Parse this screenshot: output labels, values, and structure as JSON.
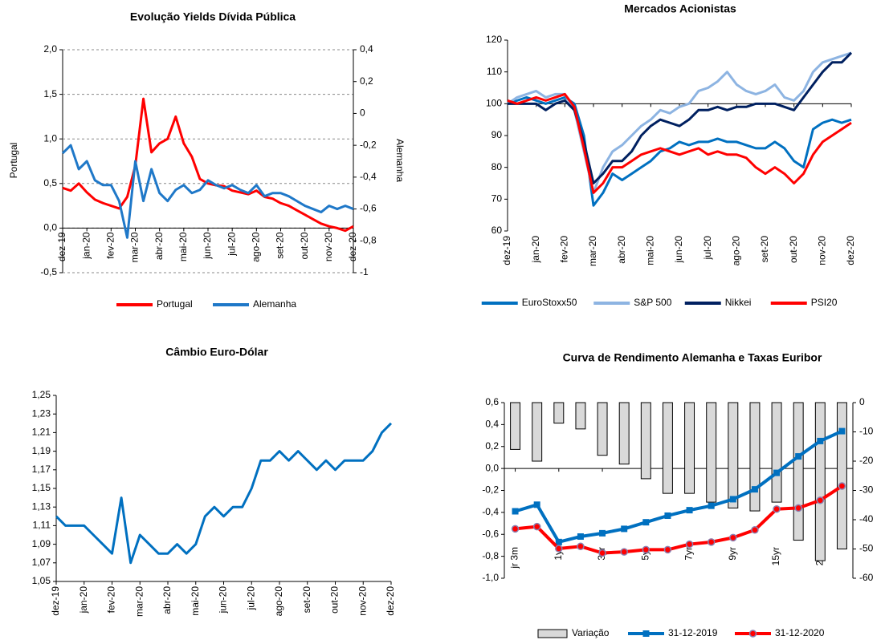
{
  "chart_data": [
    {
      "type": "line",
      "title": "Evolução Yields Dívida Pública",
      "ylabel": "Portugal",
      "y2label": "Alemanha",
      "categories": [
        "dez-19",
        null,
        null,
        "jan-20",
        null,
        null,
        "fev-20",
        null,
        null,
        "mar-20",
        null,
        null,
        "abr-20",
        null,
        null,
        "mai-20",
        null,
        null,
        "jun-20",
        null,
        null,
        "jul-20",
        null,
        null,
        "ago-20",
        null,
        null,
        "set-20",
        null,
        null,
        "out-20",
        null,
        null,
        "nov-20",
        null,
        null,
        "dez-20"
      ],
      "series": [
        {
          "name": "Portugal",
          "color": "#ff0000",
          "values": [
            0.45,
            0.42,
            0.5,
            0.4,
            0.32,
            0.28,
            0.25,
            0.22,
            0.35,
            0.7,
            1.45,
            0.85,
            0.95,
            1.0,
            1.25,
            0.95,
            0.8,
            0.55,
            0.5,
            0.48,
            0.47,
            0.42,
            0.4,
            0.38,
            0.42,
            0.35,
            0.33,
            0.28,
            0.25,
            0.2,
            0.15,
            0.1,
            0.05,
            0.02,
            0.0,
            -0.03,
            0.02
          ]
        },
        {
          "name": "Alemanha",
          "color": "#1f78c8",
          "axis": "y2",
          "values": [
            -0.25,
            -0.2,
            -0.35,
            -0.3,
            -0.42,
            -0.45,
            -0.45,
            -0.55,
            -0.78,
            -0.3,
            -0.55,
            -0.35,
            -0.5,
            -0.55,
            -0.48,
            -0.45,
            -0.5,
            -0.48,
            -0.42,
            -0.45,
            -0.47,
            -0.45,
            -0.48,
            -0.5,
            -0.45,
            -0.52,
            -0.5,
            -0.5,
            -0.52,
            -0.55,
            -0.58,
            -0.6,
            -0.62,
            -0.58,
            -0.6,
            -0.58,
            -0.6
          ]
        }
      ],
      "ylim": [
        -0.5,
        2.0
      ],
      "yticks": [
        {
          "value": -0.5,
          "label": "-0,5"
        },
        {
          "value": 0,
          "label": "0,0"
        },
        {
          "value": 0.5,
          "label": "0,5"
        },
        {
          "value": 1,
          "label": "1,0"
        },
        {
          "value": 1.5,
          "label": "1,5"
        },
        {
          "value": 2,
          "label": "2,0"
        }
      ],
      "y2lim": [
        -1,
        0.4
      ],
      "y2ticks": [
        -1,
        {
          "value": -0.8,
          "label": "-0,8"
        },
        {
          "value": -0.6,
          "label": "-0,6"
        },
        {
          "value": -0.4,
          "label": "-0,4"
        },
        {
          "value": -0.2,
          "label": "-0,2"
        },
        0,
        {
          "value": 0.2,
          "label": "0,2"
        },
        {
          "value": 0.4,
          "label": "0,4"
        }
      ],
      "x_axis_at": 0,
      "grid": true,
      "legend": "bottom"
    },
    {
      "type": "line",
      "title": "Mercados Acionistas",
      "categories": [
        "dez-19",
        null,
        null,
        "jan-20",
        null,
        null,
        "fev-20",
        null,
        null,
        "mar-20",
        null,
        null,
        "abr-20",
        null,
        null,
        "mai-20",
        null,
        null,
        "jun-20",
        null,
        null,
        "jul-20",
        null,
        null,
        "ago-20",
        null,
        null,
        "set-20",
        null,
        null,
        "out-20",
        null,
        null,
        "nov-20",
        null,
        null,
        "dez-20"
      ],
      "series": [
        {
          "name": "EuroStoxx50",
          "color": "#0070c0",
          "values": [
            100,
            101,
            102,
            101,
            100,
            101,
            102,
            100,
            90,
            68,
            72,
            78,
            76,
            78,
            80,
            82,
            85,
            86,
            88,
            87,
            88,
            88,
            89,
            88,
            88,
            87,
            86,
            86,
            88,
            86,
            82,
            80,
            92,
            94,
            95,
            94,
            95
          ]
        },
        {
          "name": "S&P 500",
          "color": "#8db4e2",
          "values": [
            100,
            102,
            103,
            104,
            102,
            103,
            103,
            98,
            85,
            72,
            80,
            85,
            87,
            90,
            93,
            95,
            98,
            97,
            99,
            100,
            104,
            105,
            107,
            110,
            106,
            104,
            103,
            104,
            106,
            102,
            101,
            104,
            110,
            113,
            114,
            115,
            116
          ]
        },
        {
          "name": "Nikkei",
          "color": "#002060",
          "values": [
            100,
            100,
            100,
            100,
            98,
            100,
            101,
            98,
            88,
            75,
            78,
            82,
            82,
            85,
            90,
            93,
            95,
            94,
            93,
            95,
            98,
            98,
            99,
            98,
            99,
            99,
            100,
            100,
            100,
            99,
            98,
            102,
            106,
            110,
            113,
            113,
            116
          ]
        },
        {
          "name": "PSI20",
          "color": "#ff0000",
          "values": [
            101,
            100,
            101,
            102,
            101,
            102,
            103,
            99,
            86,
            72,
            75,
            80,
            80,
            82,
            84,
            85,
            86,
            85,
            84,
            85,
            86,
            84,
            85,
            84,
            84,
            83,
            80,
            78,
            80,
            78,
            75,
            78,
            84,
            88,
            90,
            92,
            94
          ]
        }
      ],
      "ylim": [
        60,
        120
      ],
      "yticks": [
        60,
        70,
        80,
        90,
        100,
        110,
        120
      ],
      "x_axis_at": 100,
      "grid": false,
      "legend": "bottom"
    },
    {
      "type": "line",
      "title": "Câmbio Euro-Dólar",
      "categories": [
        "dez-19",
        null,
        null,
        "jan-20",
        null,
        null,
        "fev-20",
        null,
        null,
        "mar-20",
        null,
        null,
        "abr-20",
        null,
        null,
        "mai-20",
        null,
        null,
        "jun-20",
        null,
        null,
        "jul-20",
        null,
        null,
        "ago-20",
        null,
        null,
        "set-20",
        null,
        null,
        "out-20",
        null,
        null,
        "nov-20",
        null,
        null,
        "dez-20"
      ],
      "values": [
        1.12,
        1.11,
        1.11,
        1.11,
        1.1,
        1.09,
        1.08,
        1.14,
        1.07,
        1.1,
        1.09,
        1.08,
        1.08,
        1.09,
        1.08,
        1.09,
        1.12,
        1.13,
        1.12,
        1.13,
        1.13,
        1.15,
        1.18,
        1.18,
        1.19,
        1.18,
        1.19,
        1.18,
        1.17,
        1.18,
        1.17,
        1.18,
        1.18,
        1.18,
        1.19,
        1.21,
        1.22
      ],
      "color": "#0070c0",
      "ylim": [
        1.05,
        1.25
      ],
      "yticks": [
        {
          "value": 1.05,
          "label": "1,05"
        },
        {
          "value": 1.07,
          "label": "1,07"
        },
        {
          "value": 1.09,
          "label": "1,09"
        },
        {
          "value": 1.11,
          "label": "1,11"
        },
        {
          "value": 1.13,
          "label": "1,13"
        },
        {
          "value": 1.15,
          "label": "1,15"
        },
        {
          "value": 1.17,
          "label": "1,17"
        },
        {
          "value": 1.19,
          "label": "1,19"
        },
        {
          "value": 1.21,
          "label": "1,21"
        },
        {
          "value": 1.23,
          "label": "1,23"
        },
        {
          "value": 1.25,
          "label": "1,25"
        }
      ],
      "grid": false
    },
    {
      "type": "combo",
      "title": "Curva de Rendimento Alemanha e Taxas Euribor",
      "categories": [
        "jr 3m",
        null,
        "1yr",
        null,
        "3yr",
        null,
        "5yr",
        null,
        "7yr",
        null,
        "9yr",
        null,
        "15yr",
        null,
        "25yr",
        null
      ],
      "series": [
        {
          "name": "Variação",
          "type": "bar",
          "axis": "y2",
          "color": "#d9d9d9",
          "values": [
            -16,
            -20,
            -7,
            -9,
            -18,
            -21,
            -26,
            -31,
            -31,
            -34,
            -36,
            -37,
            -34,
            -47,
            -54,
            -50
          ]
        },
        {
          "name": "31-12-2019",
          "type": "line",
          "marker": "square",
          "color": "#0070c0",
          "values": [
            -0.39,
            -0.33,
            -0.67,
            -0.62,
            -0.59,
            -0.55,
            -0.49,
            -0.43,
            -0.38,
            -0.34,
            -0.28,
            -0.19,
            -0.04,
            0.11,
            0.25,
            0.34
          ]
        },
        {
          "name": "31-12-2020",
          "type": "line",
          "marker": "circle",
          "color": "#ff0000",
          "values": [
            -0.55,
            -0.53,
            -0.73,
            -0.71,
            -0.77,
            -0.76,
            -0.74,
            -0.74,
            -0.69,
            -0.67,
            -0.63,
            -0.56,
            -0.37,
            -0.36,
            -0.29,
            -0.16
          ]
        }
      ],
      "ylim": [
        -1,
        0.6
      ],
      "yticks": [
        {
          "value": -1,
          "label": "-1,0"
        },
        {
          "value": -0.8,
          "label": "-0,8"
        },
        {
          "value": -0.6,
          "label": "-0,6"
        },
        {
          "value": -0.4,
          "label": "-0,4"
        },
        {
          "value": -0.2,
          "label": "-0,2"
        },
        {
          "value": 0,
          "label": "0,0"
        },
        {
          "value": 0.2,
          "label": "0,2"
        },
        {
          "value": 0.4,
          "label": "0,4"
        },
        {
          "value": 0.6,
          "label": "0,6"
        }
      ],
      "y2lim": [
        -60,
        0
      ],
      "y2ticks": [
        -60,
        -50,
        -40,
        -30,
        -20,
        -10,
        0
      ],
      "x_axis_at": 0,
      "grid": false,
      "legend": "bottom"
    }
  ]
}
